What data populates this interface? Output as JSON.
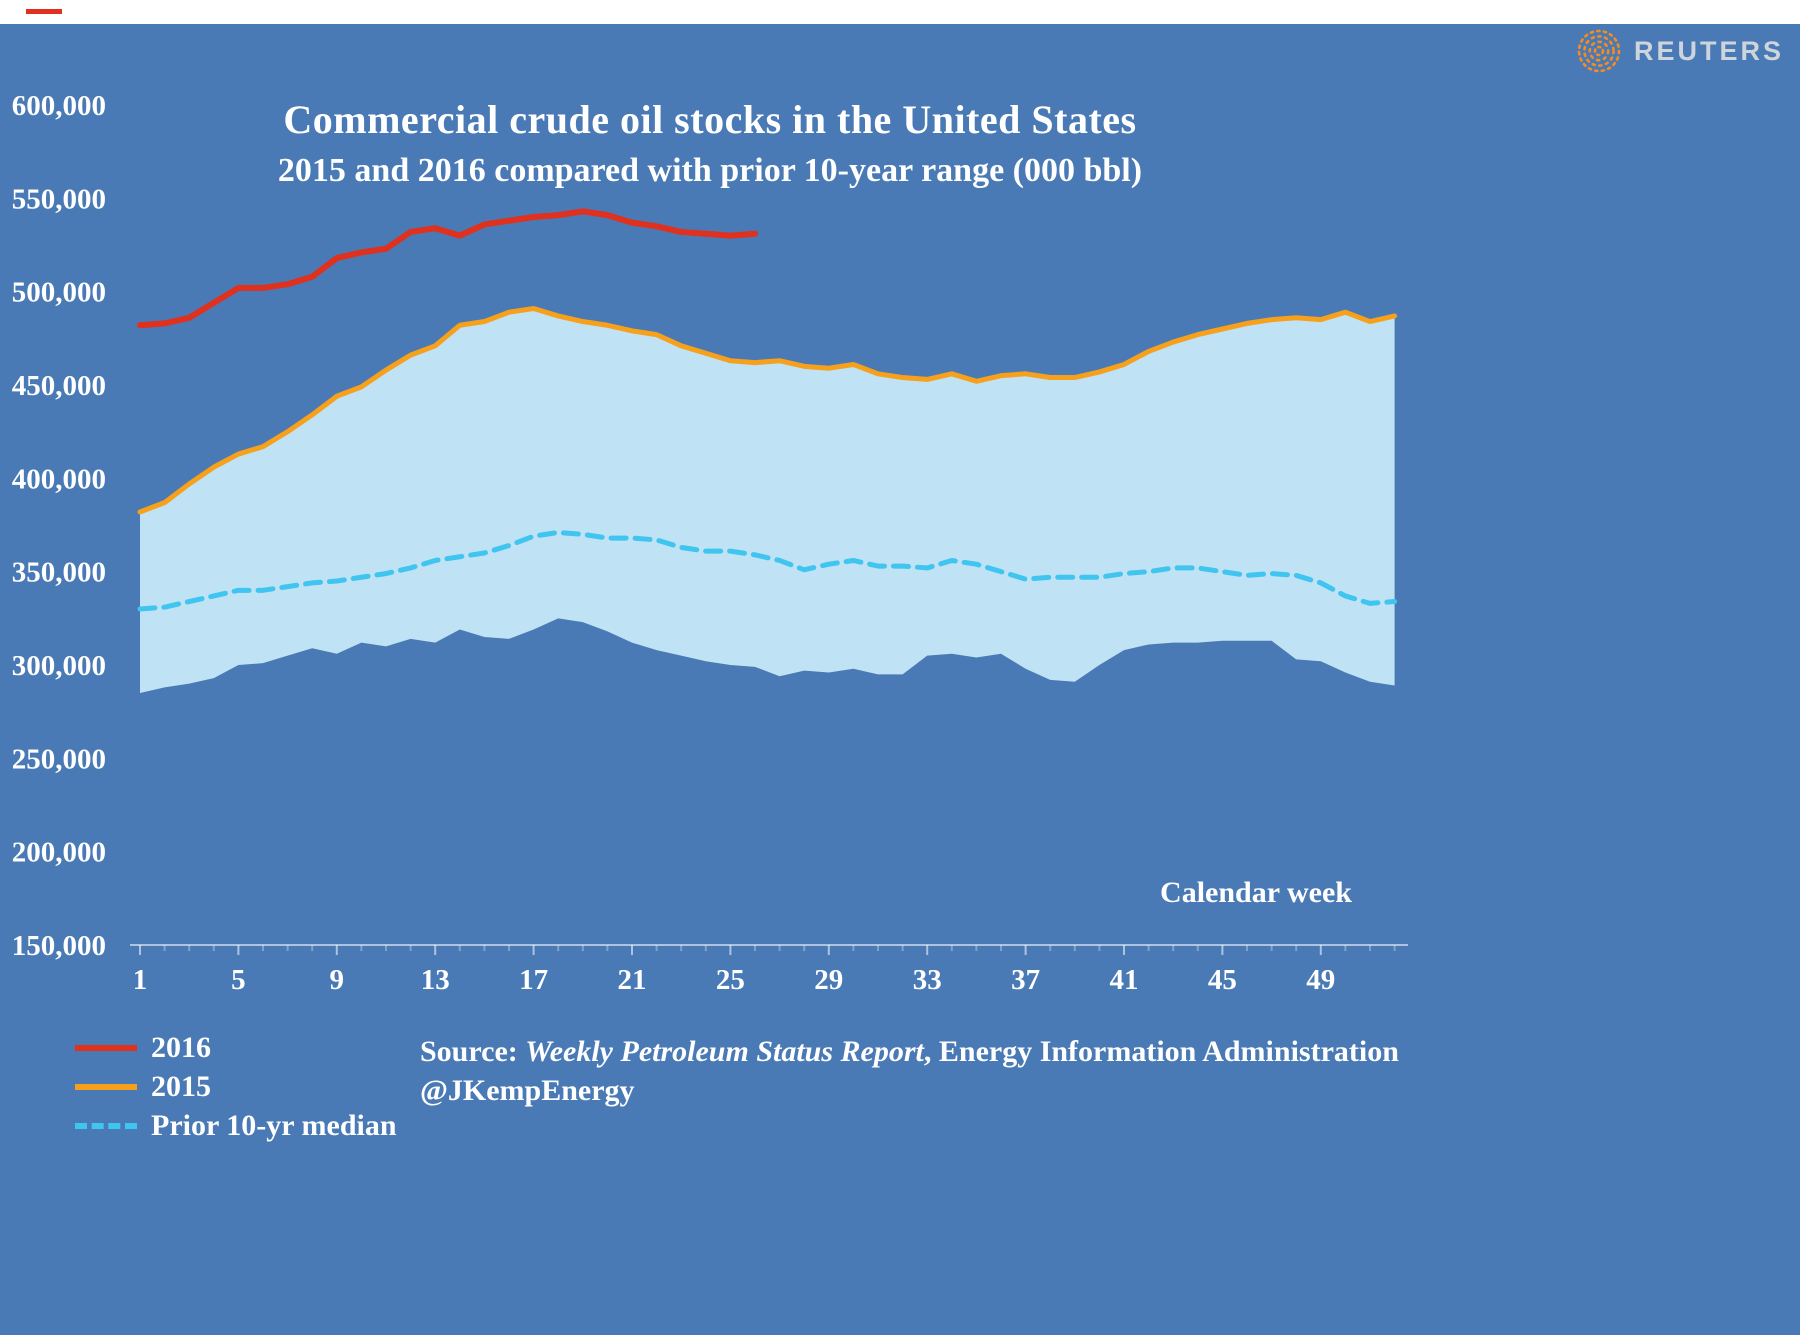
{
  "page": {
    "background_color": "#4a7ab5"
  },
  "header": {
    "brand": "REUTERS",
    "brand_color": "#ced4db",
    "logo_dot_color": "#f68b1f"
  },
  "chart_data": {
    "type": "line",
    "title": "Commercial crude oil stocks in the United States",
    "subtitle": "2015 and 2016 compared with prior 10-year range (000 bbl)",
    "xlabel": "Calendar week",
    "ylabel": "",
    "unit": "000 bbl",
    "xlim": [
      1,
      53
    ],
    "ylim": [
      150000,
      600000
    ],
    "x_ticks": [
      1,
      5,
      9,
      13,
      17,
      21,
      25,
      29,
      33,
      37,
      41,
      45,
      49
    ],
    "y_ticks": [
      600000,
      550000,
      500000,
      450000,
      400000,
      350000,
      300000,
      250000,
      200000,
      150000
    ],
    "grid": false,
    "legend_position": "bottom-left",
    "band": {
      "name": "Prior 10-yr range",
      "color": "#bfe2f4",
      "start_week": 1,
      "upper": [
        382000,
        387000,
        397000,
        406000,
        413000,
        417000,
        425000,
        434000,
        444000,
        449000,
        458000,
        466000,
        471000,
        482000,
        484000,
        489000,
        491000,
        487000,
        484000,
        482000,
        479000,
        477000,
        471000,
        467000,
        463000,
        462000,
        463000,
        460000,
        459000,
        461000,
        456000,
        454000,
        453000,
        456000,
        452000,
        455000,
        456000,
        454000,
        454000,
        457000,
        461000,
        468000,
        473000,
        477000,
        480000,
        483000,
        485000,
        486000,
        485000,
        489000,
        484000,
        487000
      ],
      "lower": [
        285000,
        288000,
        290000,
        293000,
        300000,
        301000,
        305000,
        309000,
        306000,
        312000,
        310000,
        314000,
        312000,
        319000,
        315000,
        314000,
        319000,
        325000,
        323000,
        318000,
        312000,
        308000,
        305000,
        302000,
        300000,
        299000,
        294000,
        297000,
        296000,
        298000,
        295000,
        295000,
        305000,
        306000,
        304000,
        306000,
        298000,
        292000,
        291000,
        300000,
        308000,
        311000,
        312000,
        312000,
        313000,
        313000,
        313000,
        303000,
        302000,
        296000,
        291000,
        289000
      ]
    },
    "series": [
      {
        "name": "2016",
        "color": "#e0301e",
        "style": "solid",
        "width": 6,
        "start_week": 1,
        "values": [
          482000,
          483000,
          486000,
          494000,
          502000,
          502000,
          504000,
          508000,
          518000,
          521000,
          523000,
          532000,
          534000,
          530000,
          536000,
          538000,
          540000,
          541000,
          543000,
          541000,
          537000,
          535000,
          532000,
          531000,
          530000,
          531000
        ]
      },
      {
        "name": "2015",
        "color": "#f6a01b",
        "style": "solid",
        "width": 5,
        "start_week": 1,
        "values": [
          382000,
          387000,
          397000,
          406000,
          413000,
          417000,
          425000,
          434000,
          444000,
          449000,
          458000,
          466000,
          471000,
          482000,
          484000,
          489000,
          491000,
          487000,
          484000,
          482000,
          479000,
          477000,
          471000,
          467000,
          463000,
          462000,
          463000,
          460000,
          459000,
          461000,
          456000,
          454000,
          453000,
          456000,
          452000,
          455000,
          456000,
          454000,
          454000,
          457000,
          461000,
          468000,
          473000,
          477000,
          480000,
          483000,
          485000,
          486000,
          485000,
          489000,
          484000,
          487000
        ]
      },
      {
        "name": "Prior 10-yr median",
        "color": "#3fc5ef",
        "style": "dashed",
        "width": 5,
        "start_week": 1,
        "values": [
          330000,
          331000,
          334000,
          337000,
          340000,
          340000,
          342000,
          344000,
          345000,
          347000,
          349000,
          352000,
          356000,
          358000,
          360000,
          364000,
          369000,
          371000,
          370000,
          368000,
          368000,
          367000,
          363000,
          361000,
          361000,
          359000,
          356000,
          351000,
          354000,
          356000,
          353000,
          353000,
          352000,
          356000,
          354000,
          350000,
          346000,
          347000,
          347000,
          347000,
          349000,
          350000,
          352000,
          352000,
          350000,
          348000,
          349000,
          348000,
          344000,
          337000,
          333000,
          334000
        ]
      }
    ]
  },
  "source": {
    "prefix": "Source: ",
    "report": "Weekly Petroleum Status Report",
    "suffix": ", Energy Information Administration",
    "handle": "@JKempEnergy"
  }
}
